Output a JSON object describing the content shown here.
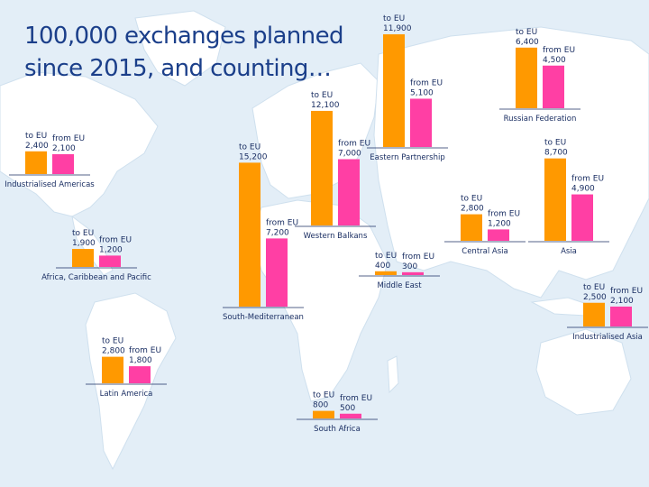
{
  "title": {
    "line1": "100,000 exchanges planned",
    "line2": "since 2015, and counting…"
  },
  "colors": {
    "to_eu": "#ff9900",
    "from_eu": "#ff3fa4",
    "text": "#1b2f63",
    "land": "#ffffff",
    "sea": "#e3eef7"
  },
  "chart_data": {
    "type": "bar",
    "title": "100,000 exchanges planned since 2015, and counting…",
    "series_names": [
      "to EU",
      "from EU"
    ],
    "unit": "exchanges",
    "regions": [
      {
        "name": "Industrialised Americas",
        "to_eu": 2400,
        "to_eu_label": "2,400",
        "from_eu": 2100,
        "from_eu_label": "2,100"
      },
      {
        "name": "Africa, Caribbean and Pacific",
        "to_eu": 1900,
        "to_eu_label": "1,900",
        "from_eu": 1200,
        "from_eu_label": "1,200"
      },
      {
        "name": "Latin America",
        "to_eu": 2800,
        "to_eu_label": "2,800",
        "from_eu": 1800,
        "from_eu_label": "1,800"
      },
      {
        "name": "South-Mediterranean",
        "to_eu": 15200,
        "to_eu_label": "15,200",
        "from_eu": 7200,
        "from_eu_label": "7,200"
      },
      {
        "name": "Western Balkans",
        "to_eu": 12100,
        "to_eu_label": "12,100",
        "from_eu": 7000,
        "from_eu_label": "7,000"
      },
      {
        "name": "Eastern Partnership",
        "to_eu": 11900,
        "to_eu_label": "11,900",
        "from_eu": 5100,
        "from_eu_label": "5,100"
      },
      {
        "name": "Russian Federation",
        "to_eu": 6400,
        "to_eu_label": "6,400",
        "from_eu": 4500,
        "from_eu_label": "4,500"
      },
      {
        "name": "Middle East",
        "to_eu": 400,
        "to_eu_label": "400",
        "from_eu": 300,
        "from_eu_label": "300"
      },
      {
        "name": "Central Asia",
        "to_eu": 2800,
        "to_eu_label": "2,800",
        "from_eu": 1200,
        "from_eu_label": "1,200"
      },
      {
        "name": "Asia",
        "to_eu": 8700,
        "to_eu_label": "8,700",
        "from_eu": 4900,
        "from_eu_label": "4,900"
      },
      {
        "name": "Industrialised Asia",
        "to_eu": 2500,
        "to_eu_label": "2,500",
        "from_eu": 2100,
        "from_eu_label": "2,100"
      },
      {
        "name": "South Africa",
        "to_eu": 800,
        "to_eu_label": "800",
        "from_eu": 500,
        "from_eu_label": "500"
      }
    ]
  }
}
